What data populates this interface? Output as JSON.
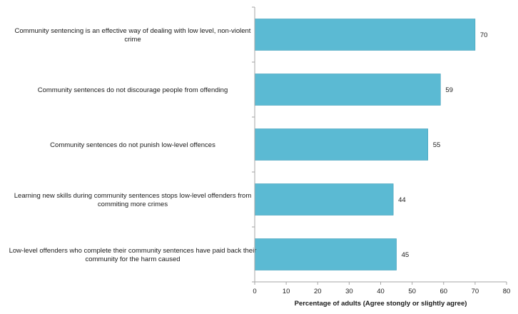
{
  "chart_data": {
    "type": "bar",
    "orientation": "horizontal",
    "categories": [
      [
        "Community sentencing is an effective way of dealing with low level, non-violent",
        "crime"
      ],
      [
        "Community sentences do not discourage people from offending"
      ],
      [
        "Community sentences do not punish low-level offences"
      ],
      [
        "Learning new skills during community sentences stops low-level offenders from",
        "commiting more crimes"
      ],
      [
        "Low-level offenders who complete their community sentences have paid back their",
        "community for the harm caused"
      ]
    ],
    "values": [
      70,
      59,
      55,
      44,
      45
    ],
    "data_labels": [
      "70",
      "59",
      "55",
      "44",
      "45"
    ],
    "xlabel": "Percentage of adults (Agree stongly or slightly agree)",
    "xlim": [
      0,
      80
    ],
    "xticks": [
      0,
      10,
      20,
      30,
      40,
      50,
      60,
      70,
      80
    ],
    "xtick_labels": [
      "0",
      "10",
      "20",
      "30",
      "40",
      "50",
      "60",
      "70",
      "80"
    ],
    "grid": false,
    "legend": "none",
    "colors": {
      "bar": "#5bbad3",
      "bar_edge": "#3f9fb9",
      "axis": "#a6a6a6",
      "text": "#1a1a1a"
    }
  }
}
